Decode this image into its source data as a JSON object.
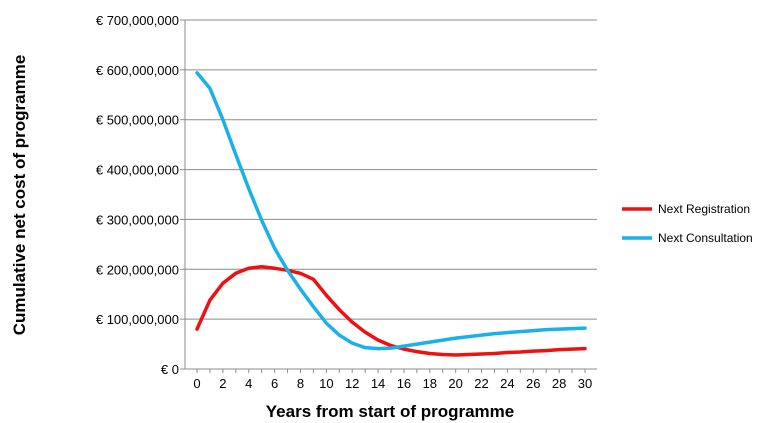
{
  "chart_data": {
    "type": "line",
    "title": "",
    "xlabel": "Years from start of programme",
    "ylabel": "Cumulative net cost of programme",
    "xlim": [
      0,
      30
    ],
    "ylim": [
      0,
      700000000
    ],
    "x_ticks": [
      0,
      2,
      4,
      6,
      8,
      10,
      12,
      14,
      16,
      18,
      20,
      22,
      24,
      26,
      28,
      30
    ],
    "y_ticks": [
      0,
      100000000,
      200000000,
      300000000,
      400000000,
      500000000,
      600000000,
      700000000
    ],
    "y_tick_labels": [
      "€ 0",
      "€ 100,000,000",
      "€ 200,000,000",
      "€ 300,000,000",
      "€ 400,000,000",
      "€ 500,000,000",
      "€ 600,000,000",
      "€ 700,000,000"
    ],
    "grid": "horizontal",
    "legend_position": "right",
    "x": [
      0,
      1,
      2,
      3,
      4,
      5,
      6,
      7,
      8,
      9,
      10,
      11,
      12,
      13,
      14,
      15,
      16,
      17,
      18,
      19,
      20,
      21,
      22,
      23,
      24,
      25,
      26,
      27,
      28,
      29,
      30
    ],
    "series": [
      {
        "name": "Next Registration",
        "color": "#ee1111",
        "values": [
          80000000,
          138000000,
          172000000,
          192000000,
          202000000,
          205000000,
          202000000,
          198000000,
          192000000,
          180000000,
          148000000,
          119000000,
          94000000,
          74000000,
          58000000,
          47000000,
          40000000,
          35000000,
          31000000,
          29000000,
          28000000,
          29000000,
          30000000,
          31000000,
          33000000,
          34000000,
          36000000,
          37000000,
          39000000,
          40000000,
          41000000
        ]
      },
      {
        "name": "Next Consultation",
        "color": "#1ab0e8",
        "values": [
          594000000,
          563000000,
          500000000,
          430000000,
          362000000,
          298000000,
          242000000,
          198000000,
          160000000,
          125000000,
          92000000,
          68000000,
          52000000,
          43000000,
          41000000,
          42000000,
          46000000,
          50000000,
          54000000,
          58000000,
          62000000,
          65000000,
          68000000,
          71000000,
          73000000,
          75000000,
          77000000,
          79000000,
          80000000,
          81000000,
          82000000
        ]
      }
    ]
  }
}
